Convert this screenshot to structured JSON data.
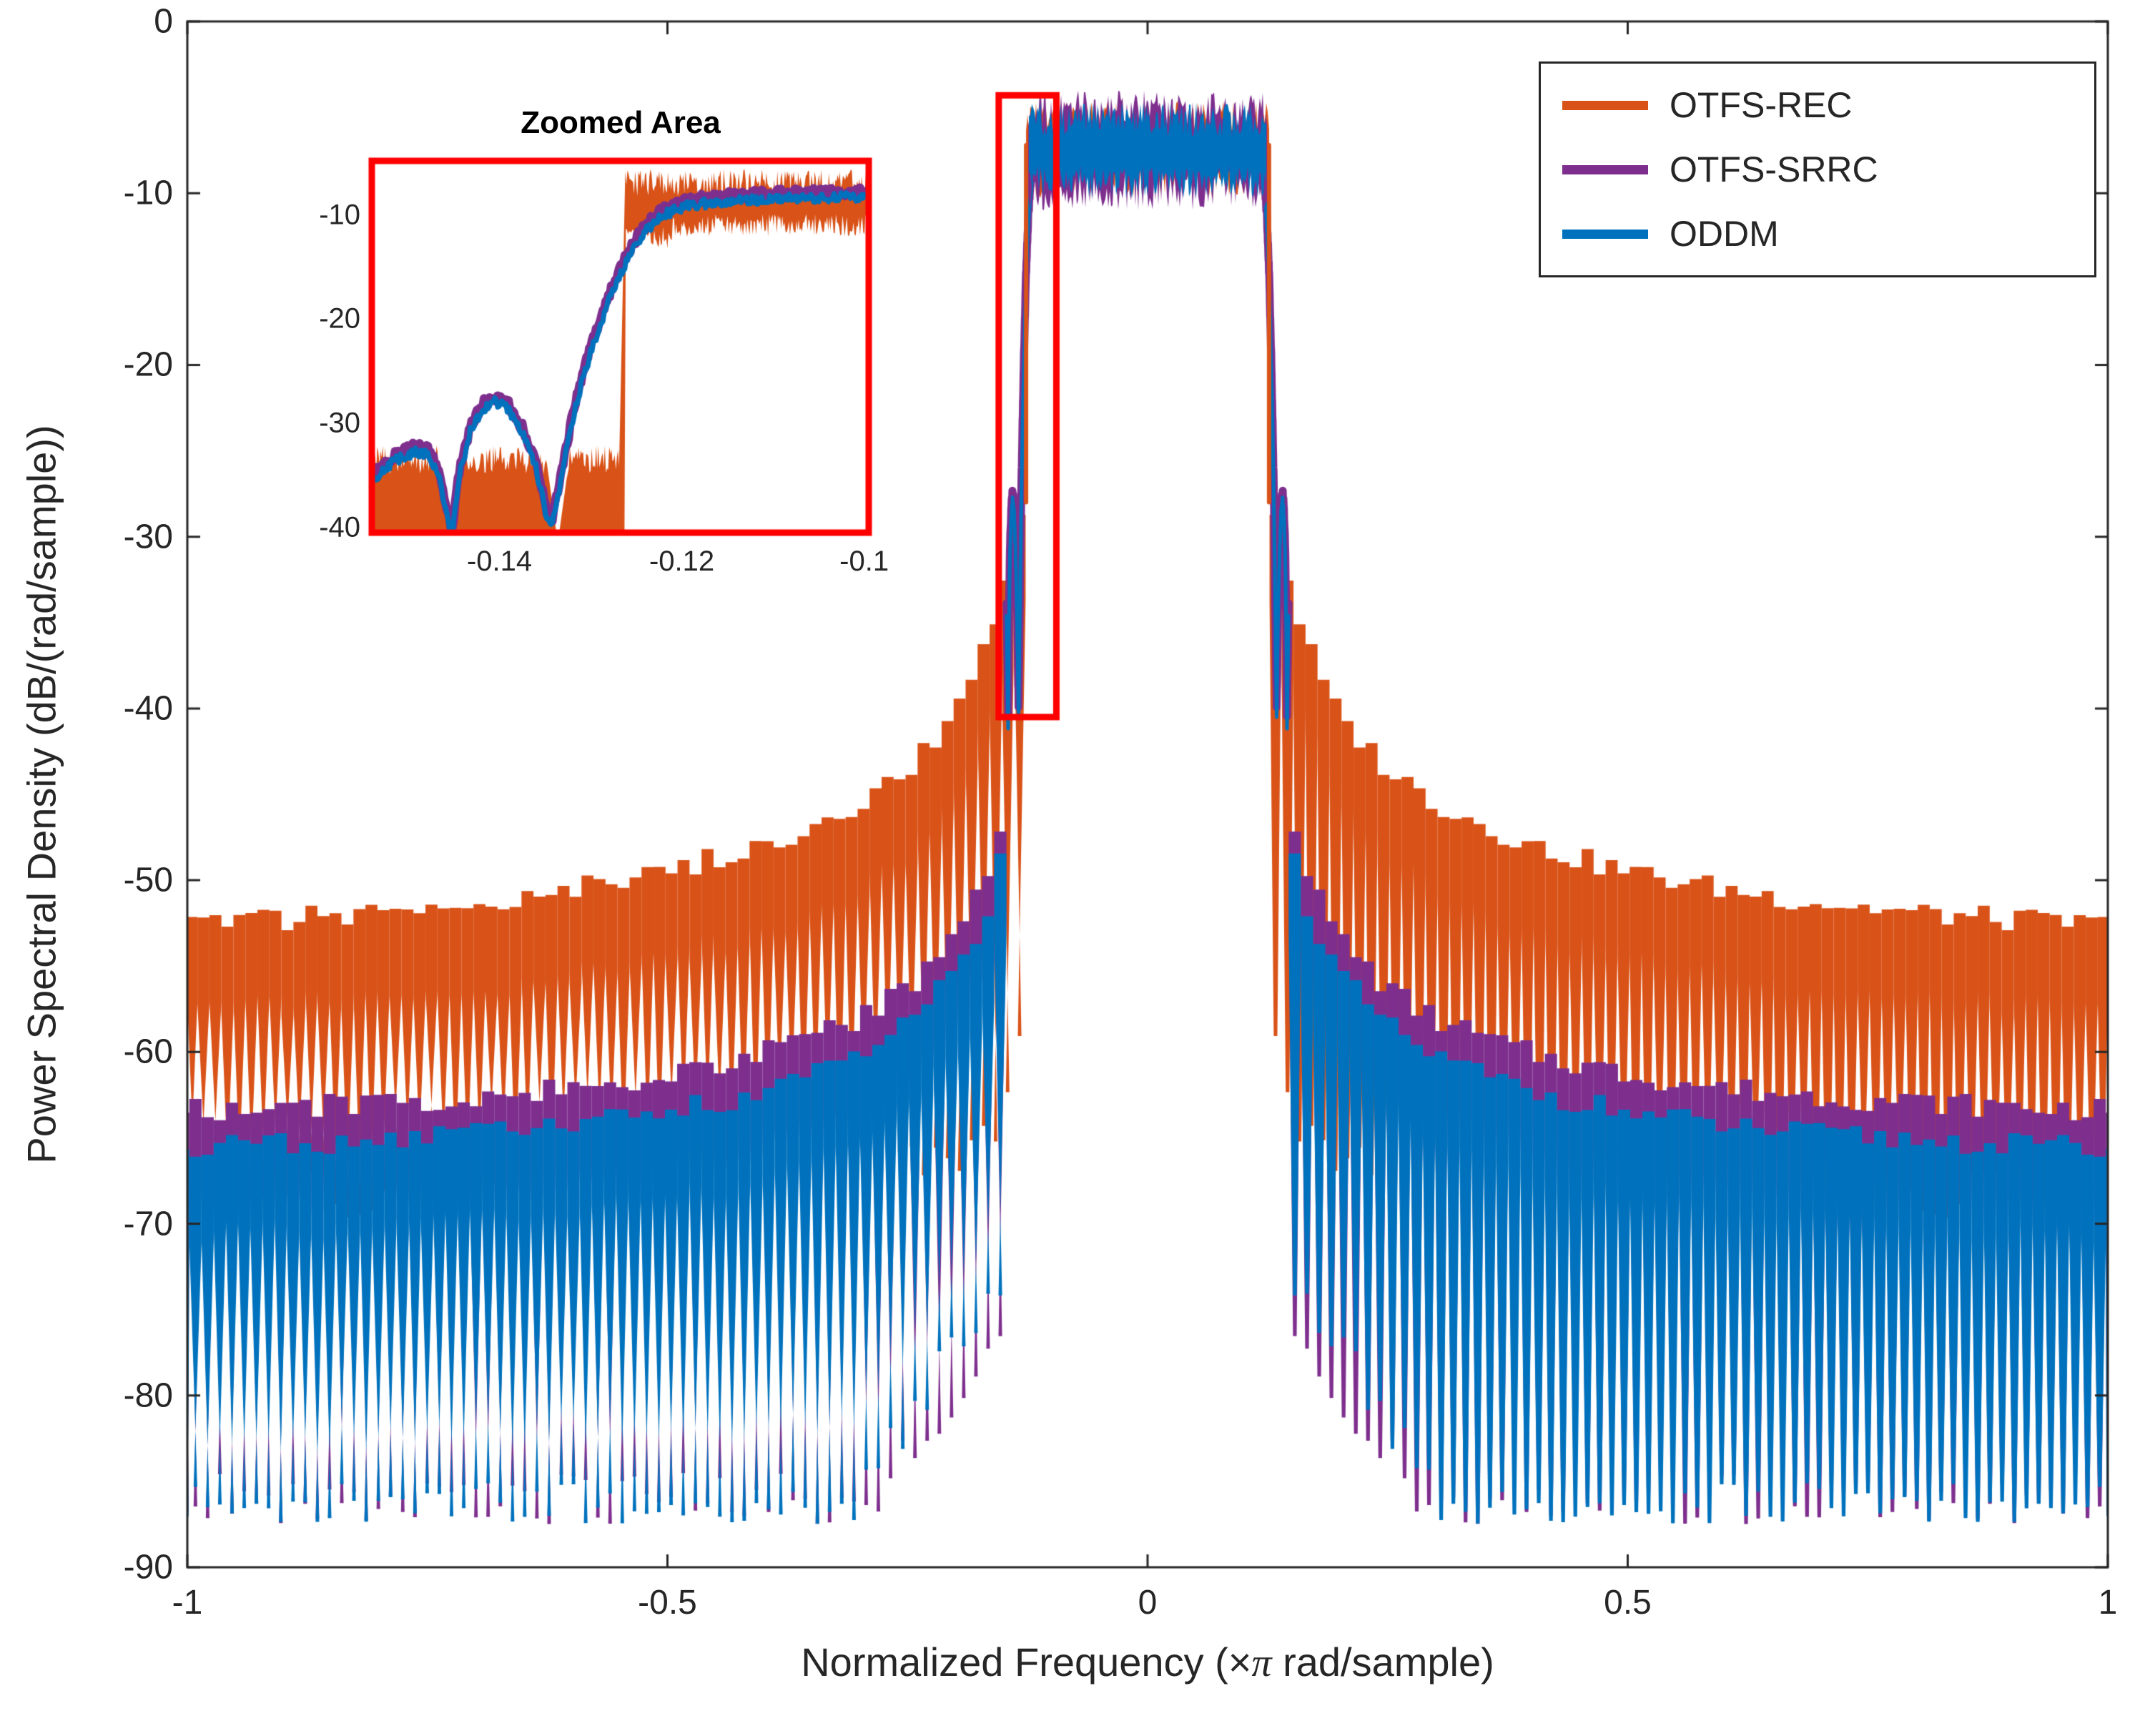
{
  "chart_data": {
    "type": "line",
    "title": "",
    "xlabel_parts": {
      "prefix": "Normalized Frequency  (×",
      "pi": "π",
      "suffix": " rad/sample)"
    },
    "ylabel": "Power Spectral Density (dB/(rad/sample))",
    "xlim": [
      -1,
      1
    ],
    "ylim": [
      -90,
      0
    ],
    "grid": false,
    "axis_color": "#262626",
    "xticks": {
      "values": [
        -1,
        -0.5,
        0,
        0.5,
        1
      ],
      "labels": [
        "-1",
        "-0.5",
        "0",
        "0.5",
        "1"
      ]
    },
    "yticks": {
      "values": [
        0,
        -10,
        -20,
        -30,
        -40,
        -50,
        -60,
        -70,
        -80,
        -90
      ],
      "labels": [
        "0",
        "-10",
        "-20",
        "-30",
        "-40",
        "-50",
        "-60",
        "-70",
        "-80",
        "-90"
      ]
    },
    "legend": {
      "position": "northeast",
      "entries": [
        {
          "label": "OTFS-REC",
          "color": "#D95319"
        },
        {
          "label": "OTFS-SRRC",
          "color": "#7E2F8E"
        },
        {
          "label": "ODDM",
          "color": "#0072BD"
        }
      ]
    },
    "passband": {
      "level_db": -7.5,
      "ripple_db": 2.0,
      "edge_freq": 0.125
    },
    "series": [
      {
        "name": "OTFS-REC",
        "color": "#D95319",
        "passband_edge": 0.1265,
        "sidelobe_period": 0.0125,
        "sidelobe_envelope_db": [
          [
            0.127,
            -26
          ],
          [
            0.14,
            -31
          ],
          [
            0.15,
            -33.5
          ],
          [
            0.175,
            -37.5
          ],
          [
            0.2,
            -40.5
          ],
          [
            0.25,
            -43.5
          ],
          [
            0.3,
            -45.5
          ],
          [
            0.4,
            -48
          ],
          [
            0.5,
            -49.5
          ],
          [
            0.6,
            -50.5
          ],
          [
            0.7,
            -51.3
          ],
          [
            0.8,
            -51.9
          ],
          [
            0.9,
            -52.3
          ],
          [
            1.0,
            -52.6
          ]
        ]
      },
      {
        "name": "OTFS-SRRC",
        "color": "#7E2F8E",
        "passband_edge": 0.125,
        "sidelobe_period": 0.0127,
        "sidelobe_envelope_db": [
          [
            0.147,
            -43.8
          ],
          [
            0.15,
            -45.8
          ],
          [
            0.16,
            -48.3
          ],
          [
            0.18,
            -51.3
          ],
          [
            0.2,
            -53.3
          ],
          [
            0.25,
            -56.3
          ],
          [
            0.3,
            -58.1
          ],
          [
            0.4,
            -60.1
          ],
          [
            0.5,
            -61.3
          ],
          [
            0.6,
            -62.1
          ],
          [
            0.7,
            -62.6
          ],
          [
            0.8,
            -62.9
          ],
          [
            0.9,
            -63.2
          ],
          [
            1.0,
            -63.4
          ]
        ]
      },
      {
        "name": "ODDM",
        "color": "#0072BD",
        "passband_edge": 0.125,
        "sidelobe_period": 0.0127,
        "sidelobe_envelope_db": [
          [
            0.147,
            -46
          ],
          [
            0.15,
            -48
          ],
          [
            0.16,
            -50.5
          ],
          [
            0.18,
            -53.5
          ],
          [
            0.2,
            -55.5
          ],
          [
            0.25,
            -58.5
          ],
          [
            0.3,
            -60.3
          ],
          [
            0.4,
            -62.3
          ],
          [
            0.5,
            -63.5
          ],
          [
            0.6,
            -64.3
          ],
          [
            0.7,
            -64.8
          ],
          [
            0.8,
            -65.1
          ],
          [
            0.9,
            -65.4
          ],
          [
            1.0,
            -65.6
          ]
        ]
      }
    ],
    "transition_curve_db": [
      [
        -0.154,
        -35.5
      ],
      [
        -0.1515,
        -33.6
      ],
      [
        -0.1495,
        -32.8
      ],
      [
        -0.148,
        -32.9
      ],
      [
        -0.1468,
        -34.5
      ],
      [
        -0.1458,
        -38.5
      ],
      [
        -0.1452,
        -41
      ],
      [
        -0.1444,
        -35
      ],
      [
        -0.1432,
        -30.8
      ],
      [
        -0.1418,
        -28.6
      ],
      [
        -0.1405,
        -27.9
      ],
      [
        -0.139,
        -28.7
      ],
      [
        -0.1375,
        -30.9
      ],
      [
        -0.136,
        -34.3
      ],
      [
        -0.135,
        -38.2
      ],
      [
        -0.1344,
        -40.3
      ],
      [
        -0.1338,
        -38
      ],
      [
        -0.133,
        -34.2
      ],
      [
        -0.132,
        -29.8
      ],
      [
        -0.131,
        -26.2
      ],
      [
        -0.13,
        -23.2
      ],
      [
        -0.129,
        -20.6
      ],
      [
        -0.128,
        -18.2
      ],
      [
        -0.127,
        -16.1
      ],
      [
        -0.126,
        -14.3
      ],
      [
        -0.125,
        -12.8
      ],
      [
        -0.124,
        -11.6
      ],
      [
        -0.123,
        -10.7
      ],
      [
        -0.122,
        -10
      ],
      [
        -0.121,
        -9.6
      ],
      [
        -0.12,
        -9.3
      ],
      [
        -0.1185,
        -9
      ],
      [
        -0.1165,
        -8.8
      ],
      [
        -0.114,
        -8.6
      ],
      [
        -0.111,
        -8.5
      ],
      [
        -0.108,
        -8.4
      ],
      [
        -0.105,
        -8.35
      ],
      [
        -0.102,
        -8.3
      ],
      [
        -0.0995,
        -8.3
      ]
    ],
    "inset": {
      "title": "Zoomed Area",
      "xlim": [
        -0.154,
        -0.0995
      ],
      "ylim": [
        -40.5,
        -4.8
      ],
      "xticks": {
        "values": [
          -0.14,
          -0.12,
          -0.1
        ],
        "labels": [
          "-0.14",
          "-0.12",
          "-0.1"
        ]
      },
      "yticks": {
        "values": [
          -10,
          -20,
          -30,
          -40
        ],
        "labels": [
          "-10",
          "-20",
          "-30",
          "-40"
        ]
      },
      "box_color": "#FF0000",
      "source_box": {
        "x": [
          -0.155,
          -0.095
        ],
        "y": [
          -40.5,
          -4.3
        ]
      },
      "rec_shoulder_db": -33.5,
      "rec_notches": [
        -0.1455,
        -0.1336
      ]
    }
  }
}
